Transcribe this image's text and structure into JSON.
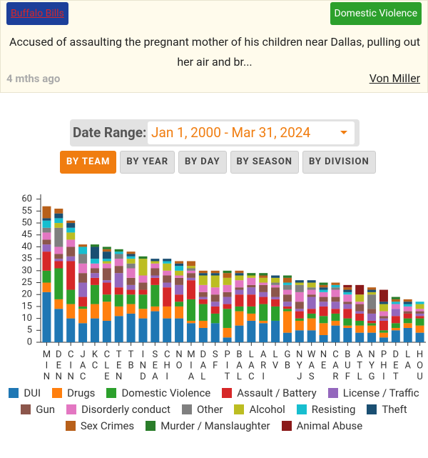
{
  "card": {
    "team": "Buffalo Bills",
    "category": "Domestic Violence",
    "description": "Accused of assaulting the pregnant mother of his children near Dallas, pulling out her air and br...",
    "time": "4 mths ago",
    "player": "Von Miller"
  },
  "filters": {
    "date_label": "Date Range:",
    "date_range": "Jan 1, 2000 - Mar 31, 2024",
    "buttons": [
      "BY TEAM",
      "BY YEAR",
      "BY DAY",
      "BY SEASON",
      "BY DIVISION"
    ],
    "active": 0
  },
  "chart_data": {
    "type": "stacked_bar",
    "categories": [
      "MIN",
      "DEN",
      "CIN",
      "JAC",
      "KC",
      "CLE",
      "TEN",
      "TB",
      "IND",
      "SEA",
      "CHI",
      "NO",
      "MIA",
      "DAL",
      "SF",
      "PIT",
      "BAL",
      "LAC",
      "ARI",
      "LV",
      "GB",
      "NYJ",
      "WAS",
      "NE",
      "CAR",
      "BUF",
      "ATL",
      "NYG",
      "PHI",
      "DET",
      "LA",
      "HOU"
    ],
    "ylim": [
      0,
      62
    ],
    "yticks": [
      0,
      5,
      10,
      15,
      20,
      25,
      30,
      35,
      40,
      45,
      50,
      55,
      60
    ],
    "series": [
      {
        "name": "DUI",
        "color": "#1f77b4",
        "values": [
          21,
          14,
          10,
          8,
          10,
          9,
          11,
          12,
          10,
          13,
          10,
          10,
          8,
          6,
          8,
          2,
          7,
          9,
          8,
          9,
          4,
          5,
          5,
          3,
          7,
          6,
          4,
          4,
          2,
          5,
          6,
          4
        ]
      },
      {
        "name": "Drugs",
        "color": "#ff7f0e",
        "values": [
          4,
          4,
          6,
          6,
          6,
          8,
          4,
          4,
          4,
          2,
          5,
          5,
          1,
          3,
          0,
          4,
          6,
          3,
          1,
          0,
          9,
          4,
          5,
          5,
          2,
          1,
          3,
          3,
          2,
          1,
          2,
          3
        ]
      },
      {
        "name": "Domestic Violence",
        "color": "#2ca02c",
        "values": [
          5,
          13,
          6,
          1,
          8,
          3,
          5,
          4,
          6,
          9,
          0,
          2,
          9,
          7,
          4,
          8,
          2,
          3,
          7,
          6,
          1,
          1,
          2,
          3,
          3,
          3,
          2,
          1,
          1,
          2,
          2,
          3
        ]
      },
      {
        "name": "Assault / Battery",
        "color": "#d62728",
        "values": [
          8,
          3,
          12,
          4,
          3,
          5,
          3,
          2,
          2,
          3,
          8,
          3,
          8,
          2,
          3,
          2,
          5,
          5,
          3,
          3,
          1,
          3,
          2,
          4,
          2,
          4,
          3,
          1,
          4,
          3,
          2,
          1
        ]
      },
      {
        "name": "License / Traffic",
        "color": "#9467bd",
        "values": [
          3,
          1,
          2,
          6,
          2,
          1,
          6,
          2,
          0,
          1,
          2,
          4,
          1,
          1,
          2,
          3,
          2,
          3,
          2,
          1,
          2,
          1,
          5,
          2,
          3,
          2,
          1,
          3,
          1,
          3,
          0,
          1
        ]
      },
      {
        "name": "Gun",
        "color": "#8c564b",
        "values": [
          2,
          2,
          4,
          4,
          2,
          5,
          3,
          3,
          3,
          3,
          3,
          3,
          2,
          2,
          3,
          2,
          1,
          1,
          3,
          4,
          3,
          3,
          1,
          2,
          2,
          1,
          3,
          2,
          1,
          0,
          1,
          1
        ]
      },
      {
        "name": "Disorderly conduct",
        "color": "#e377c2",
        "values": [
          3,
          3,
          3,
          4,
          2,
          2,
          3,
          4,
          3,
          2,
          2,
          1,
          1,
          3,
          3,
          3,
          3,
          3,
          1,
          1,
          2,
          4,
          2,
          2,
          3,
          3,
          1,
          0,
          2,
          2,
          2,
          1
        ]
      },
      {
        "name": "Other",
        "color": "#7f7f7f",
        "values": [
          2,
          8,
          0,
          4,
          0,
          0,
          2,
          2,
          0,
          0,
          0,
          0,
          1,
          0,
          0,
          0,
          0,
          0,
          0,
          1,
          2,
          3,
          1,
          0,
          1,
          0,
          0,
          6,
          0,
          0,
          0,
          0
        ]
      },
      {
        "name": "Alcohol",
        "color": "#bcbd22",
        "values": [
          0,
          2,
          3,
          0,
          0,
          1,
          0,
          2,
          7,
          1,
          3,
          2,
          1,
          4,
          5,
          3,
          2,
          1,
          2,
          2,
          0,
          1,
          2,
          0,
          0,
          0,
          3,
          1,
          3,
          0,
          0,
          2
        ]
      },
      {
        "name": "Resisting",
        "color": "#17becf",
        "values": [
          3,
          2,
          2,
          3,
          2,
          1,
          1,
          1,
          0,
          0,
          1,
          2,
          0,
          0,
          0,
          0,
          0,
          0,
          0,
          0,
          1,
          0,
          0,
          1,
          1,
          1,
          0,
          0,
          0,
          1,
          1,
          1
        ]
      },
      {
        "name": "Theft",
        "color": "#1a4f72",
        "values": [
          1,
          2,
          2,
          0,
          5,
          3,
          0,
          1,
          0,
          1,
          1,
          1,
          0,
          1,
          1,
          0,
          1,
          0,
          0,
          1,
          0,
          1,
          1,
          1,
          0,
          1,
          0,
          1,
          1,
          0,
          1,
          0
        ]
      },
      {
        "name": "Sex Crimes",
        "color": "#b8601a",
        "values": [
          5,
          2,
          1,
          1,
          0,
          1,
          0,
          1,
          0,
          0,
          0,
          1,
          2,
          1,
          1,
          2,
          1,
          0,
          1,
          0,
          2,
          0,
          0,
          1,
          1,
          1,
          0,
          1,
          0,
          1,
          1,
          0
        ]
      },
      {
        "name": "Murder / Manslaughter",
        "color": "#2a7d2a",
        "values": [
          0,
          0,
          0,
          0,
          1,
          1,
          1,
          0,
          1,
          0,
          0,
          0,
          0,
          0,
          0,
          1,
          0,
          1,
          1,
          0,
          1,
          0,
          0,
          1,
          0,
          0,
          0,
          0,
          0,
          1,
          0,
          0
        ]
      },
      {
        "name": "Animal Abuse",
        "color": "#8b1a1a",
        "values": [
          0,
          0,
          0,
          0,
          0,
          0,
          0,
          0,
          0,
          0,
          0,
          0,
          0,
          0,
          0,
          0,
          0,
          0,
          0,
          0,
          0,
          0,
          0,
          0,
          0,
          1,
          4,
          0,
          5,
          0,
          0,
          0
        ]
      }
    ]
  }
}
